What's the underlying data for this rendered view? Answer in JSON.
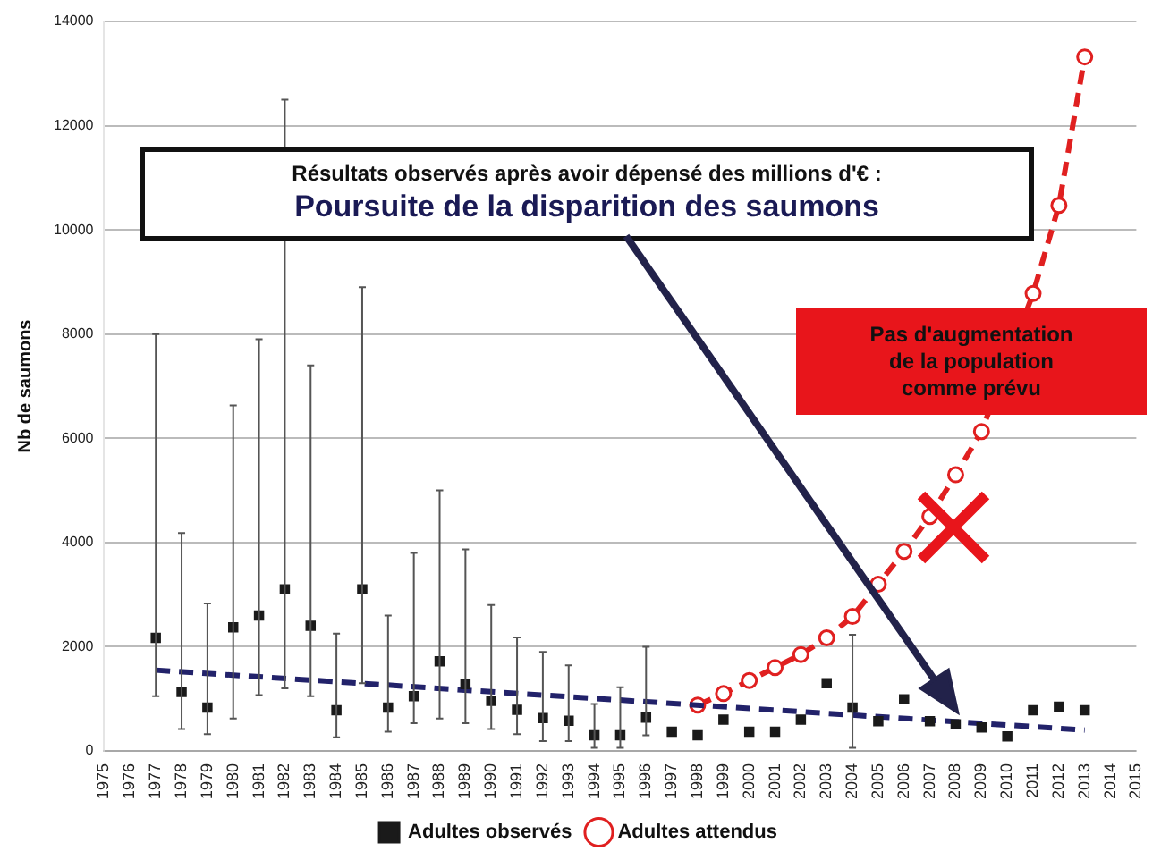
{
  "chart_data": {
    "type": "line",
    "ylabel": "Nb de saumons",
    "xlim": [
      1975,
      2015
    ],
    "xticks": [
      1975,
      1976,
      1977,
      1978,
      1979,
      1980,
      1981,
      1982,
      1983,
      1984,
      1985,
      1986,
      1987,
      1988,
      1989,
      1990,
      1991,
      1992,
      1993,
      1994,
      1995,
      1996,
      1997,
      1998,
      1999,
      2000,
      2001,
      2002,
      2003,
      2004,
      2005,
      2006,
      2007,
      2008,
      2009,
      2010,
      2011,
      2012,
      2013,
      2014,
      2015
    ],
    "ylim": [
      0,
      14000
    ],
    "yticks": [
      0,
      2000,
      4000,
      6000,
      8000,
      10000,
      12000,
      14000
    ],
    "grid": "y",
    "legend": "bottom",
    "annotations": [
      "Résultats observés après avoir dépensé des millions d'€ :",
      "Poursuite de la disparition des saumons",
      "Pas d'augmentation de la population comme prévu"
    ],
    "series": [
      {
        "name": "Adultes observés",
        "type": "scatter",
        "color": "#1a1a1a",
        "marker": "square",
        "x": [
          1977,
          1978,
          1979,
          1980,
          1981,
          1982,
          1983,
          1984,
          1985,
          1986,
          1987,
          1988,
          1989,
          1990,
          1991,
          1992,
          1993,
          1994,
          1995,
          1996,
          1997,
          1998,
          1999,
          2000,
          2001,
          2002,
          2003,
          2004,
          2005,
          2006,
          2007,
          2008,
          2009,
          2010,
          2011,
          2012,
          2013
        ],
        "values": [
          2170,
          1130,
          830,
          2370,
          2600,
          3100,
          2400,
          780,
          3100,
          830,
          1050,
          1720,
          1280,
          960,
          790,
          630,
          580,
          300,
          300,
          640,
          370,
          300,
          600,
          370,
          370,
          600,
          1300,
          830,
          570,
          990,
          570,
          510,
          450,
          280,
          780,
          850,
          780
        ],
        "errors": [
          [
            1050,
            8000
          ],
          [
            420,
            4180
          ],
          [
            320,
            2830
          ],
          [
            620,
            6630
          ],
          [
            1070,
            7900
          ],
          [
            1200,
            12500
          ],
          [
            1050,
            7400
          ],
          [
            260,
            2250
          ],
          [
            1300,
            8900
          ],
          [
            370,
            2600
          ],
          [
            530,
            3800
          ],
          [
            620,
            5000
          ],
          [
            530,
            3870
          ],
          [
            420,
            2800
          ],
          [
            320,
            2180
          ],
          [
            190,
            1900
          ],
          [
            190,
            1640
          ],
          [
            60,
            900
          ],
          [
            60,
            1220
          ],
          [
            300,
            2000
          ],
          null,
          null,
          null,
          null,
          null,
          null,
          null,
          [
            60,
            2230
          ],
          null,
          null,
          null,
          null,
          null,
          null,
          null,
          null,
          null
        ]
      },
      {
        "color": "#22226a",
        "marker": "none",
        "line_style": "dashed",
        "x": [
          1977,
          2013
        ],
        "values": [
          1550,
          400
        ]
      },
      {
        "name": "Adultes attendus",
        "color": "#e02020",
        "marker": "circle",
        "line_style": "dashed",
        "x": [
          1998,
          1999,
          2000,
          2001,
          2002,
          2003,
          2004,
          2005,
          2006,
          2007,
          2008,
          2009,
          2010,
          2011,
          2012,
          2013
        ],
        "values": [
          880,
          1100,
          1350,
          1600,
          1850,
          2170,
          2580,
          3200,
          3830,
          4500,
          5300,
          6130,
          null,
          8780,
          10470,
          13320
        ]
      }
    ]
  }
}
